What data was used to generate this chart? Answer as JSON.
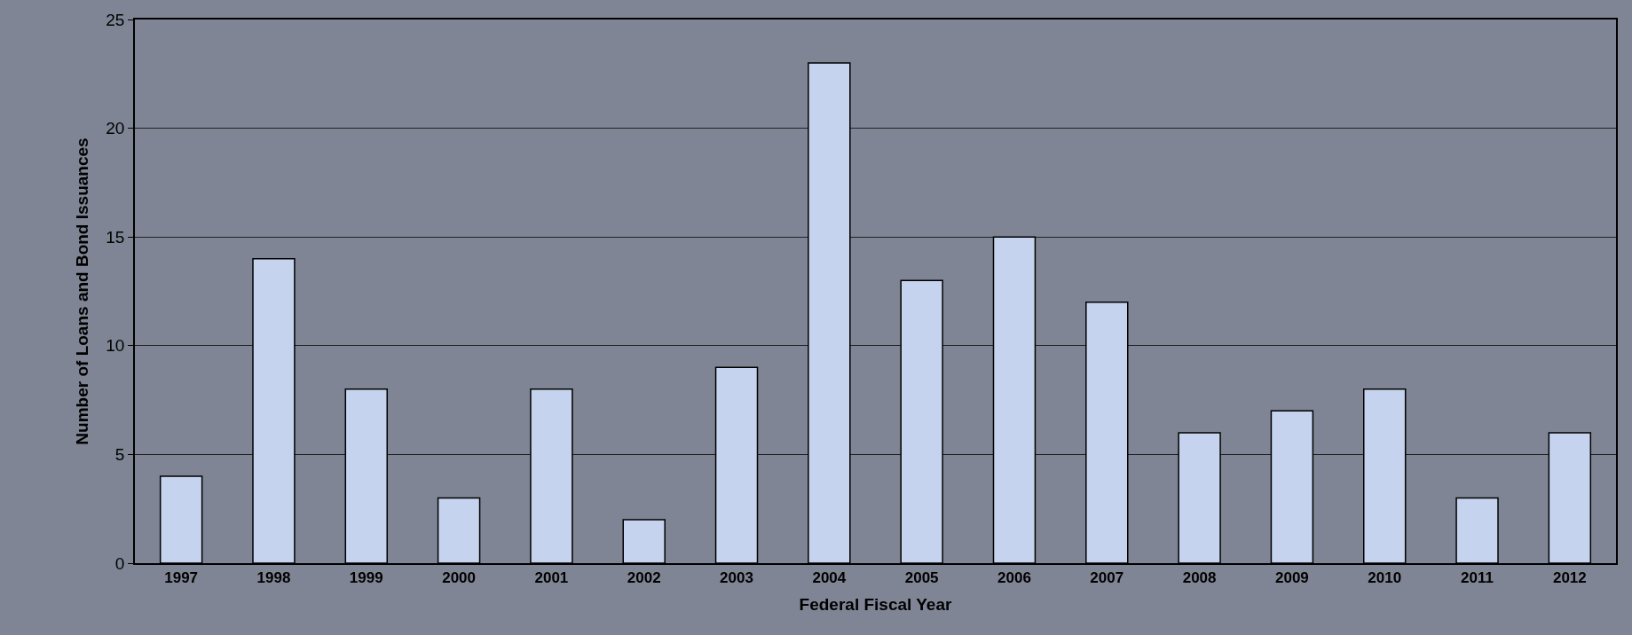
{
  "chart_data": {
    "type": "bar",
    "xlabel": "Federal Fiscal Year",
    "ylabel": "Number of Loans and Bond Issuances",
    "categories": [
      "1997",
      "1998",
      "1999",
      "2000",
      "2001",
      "2002",
      "2003",
      "2004",
      "2005",
      "2006",
      "2007",
      "2008",
      "2009",
      "2010",
      "2011",
      "2012"
    ],
    "values": [
      4,
      14,
      8,
      3,
      8,
      2,
      9,
      23,
      13,
      15,
      12,
      6,
      7,
      8,
      3,
      6
    ],
    "color": "#c5d3ee",
    "ylim": [
      0,
      25
    ],
    "yticks": [
      0,
      5,
      10,
      15,
      20,
      25
    ],
    "grid": "y",
    "legend": false
  }
}
